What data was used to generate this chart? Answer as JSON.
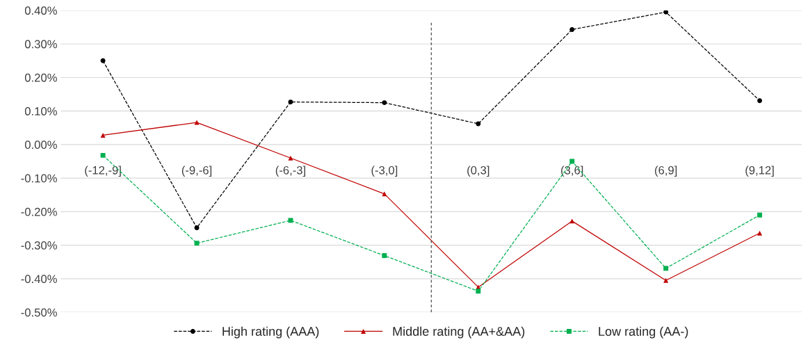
{
  "chart_data": {
    "type": "line",
    "categories": [
      "(-12,-9]",
      "(-9,-6]",
      "(-6,-3]",
      "(-3,0]",
      "(0,3]",
      "(3,6]",
      "(6,9]",
      "(9,12]"
    ],
    "series": [
      {
        "name": "High rating (AAA)",
        "color": "#000000",
        "marker": "circle",
        "line_style": "dashed",
        "values": [
          0.25,
          -0.248,
          0.127,
          0.125,
          0.062,
          0.343,
          0.395,
          0.131
        ]
      },
      {
        "name": "Middle rating (AA+&AA)",
        "color": "#c00000",
        "marker": "triangle",
        "line_style": "solid",
        "values": [
          0.028,
          0.066,
          -0.04,
          -0.147,
          -0.425,
          -0.228,
          -0.405,
          -0.264
        ]
      },
      {
        "name": "Low rating (AA-)",
        "color": "#00b050",
        "marker": "square",
        "line_style": "dashed",
        "values": [
          -0.032,
          -0.294,
          -0.226,
          -0.331,
          -0.437,
          -0.05,
          -0.369,
          -0.21
        ]
      }
    ],
    "ylim": [
      -0.5,
      0.4
    ],
    "yticks": [
      {
        "value": -0.5,
        "label": "-0.50%"
      },
      {
        "value": -0.4,
        "label": "-0.40%"
      },
      {
        "value": -0.3,
        "label": "-0.30%"
      },
      {
        "value": -0.2,
        "label": "-0.20%"
      },
      {
        "value": -0.1,
        "label": "-0.10%"
      },
      {
        "value": 0,
        "label": "0.00%"
      },
      {
        "value": 0.1,
        "label": "0.10%"
      },
      {
        "value": 0.2,
        "label": "0.20%"
      },
      {
        "value": 0.3,
        "label": "0.30%"
      },
      {
        "value": 0.4,
        "label": "0.40%"
      }
    ],
    "grid": "y",
    "legend": "bottom"
  }
}
